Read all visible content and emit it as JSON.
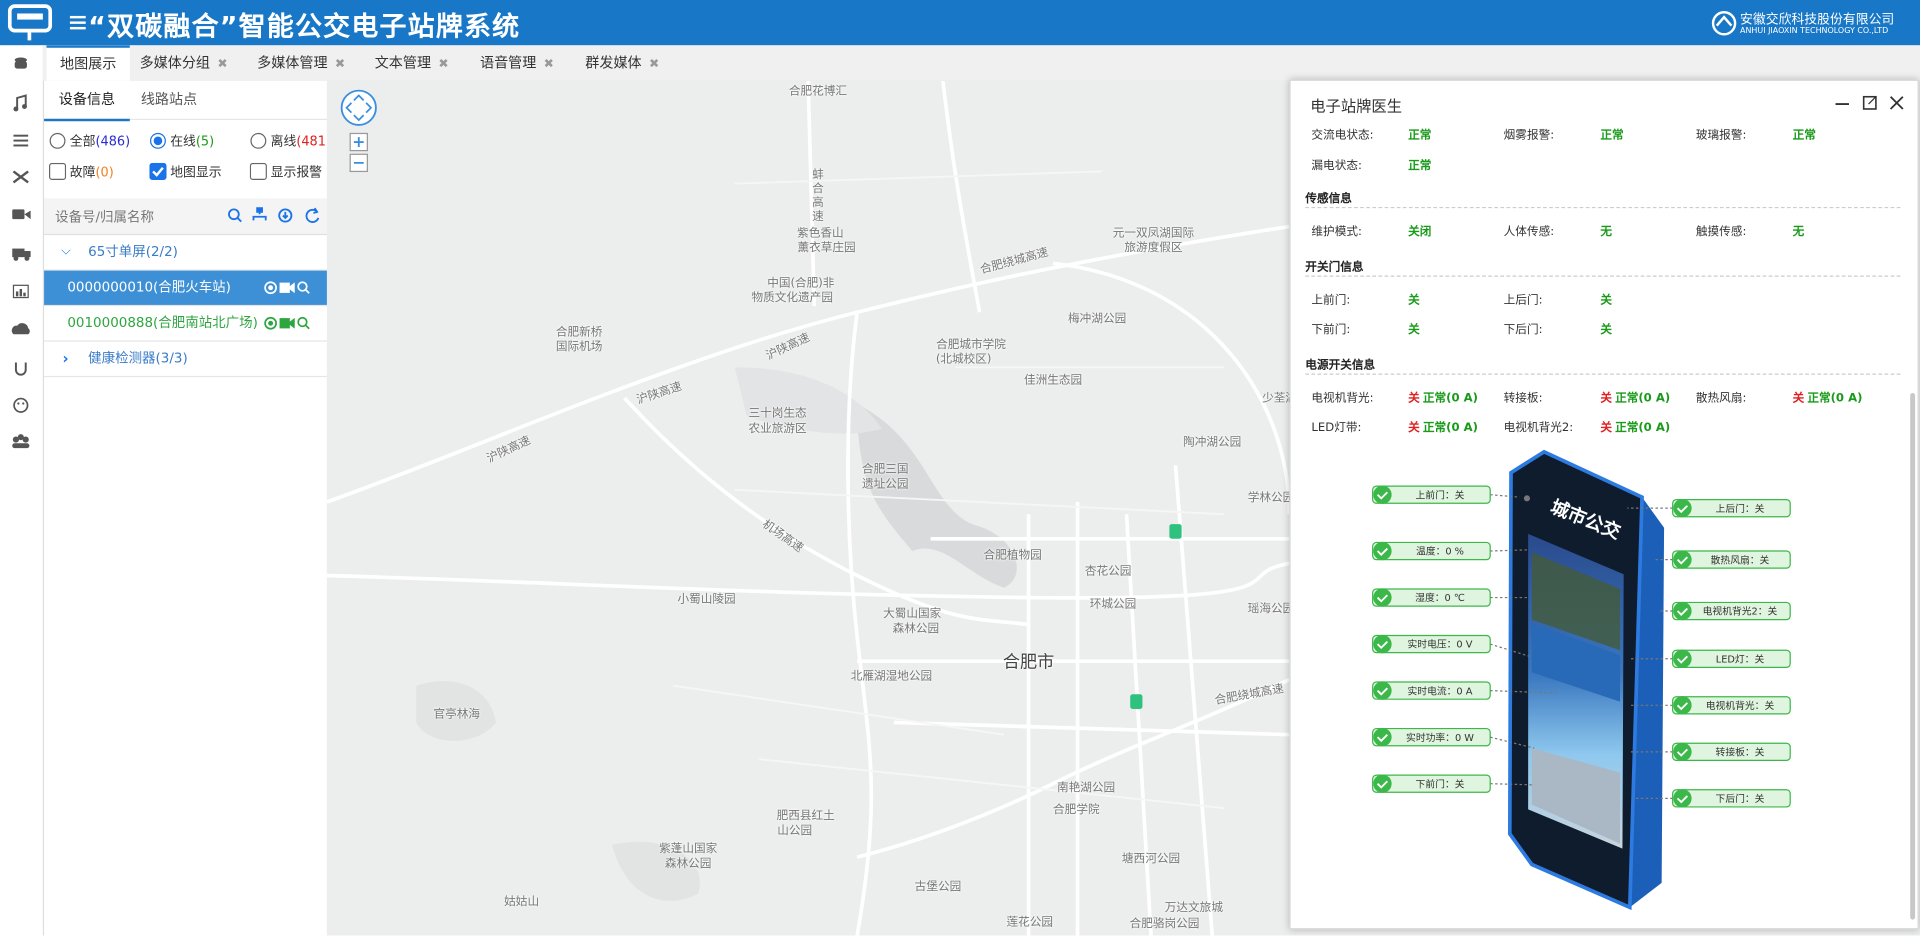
{
  "header": {
    "title": "“双碳融合”智能公交电子站牌系统",
    "company": "安徽交欣科技股份有限公司",
    "company_en": "ANHUI JIAOXIN TECHNOLOGY CO.,LTD"
  },
  "tabs": [
    "地图展示",
    "多媒体分组",
    "多媒体管理",
    "文本管理",
    "语音管理",
    "群发媒体"
  ],
  "panel": {
    "subtabs": [
      "设备信息",
      "线路站点"
    ],
    "filters": [
      {
        "label": "全部",
        "count": "(486)"
      },
      {
        "label": "在线",
        "count": "(5)"
      },
      {
        "label": "离线",
        "count": "(481)"
      },
      {
        "label": "故障",
        "count": "(0)"
      },
      {
        "label": "地图显示"
      },
      {
        "label": "显示报警"
      }
    ],
    "search_placeholder": "设备号/归属名称",
    "tree": [
      {
        "label": "65寸单屏(2/2)",
        "children": [
          "0000000010(合肥火车站)",
          "0010000888(合肥南站北广场)"
        ]
      },
      {
        "label": "健康检测器(3/3)"
      }
    ]
  },
  "map": {
    "labels": [
      "合肥花博汇",
      "蚌合高速",
      "紫色香山",
      "薰衣草庄园",
      "元一双凤湖国际",
      "旅游度假区",
      "合肥绕城高速",
      "中国(合肥)非",
      "物质文化遗产园",
      "梅冲湖公园",
      "合肥新桥",
      "国际机场",
      "合肥城市学院",
      "(北城校区)",
      "沪陕高速",
      "沪陕高速",
      "沪陕高速",
      "佳洲生态园",
      "三十岗生态",
      "农业旅游区",
      "少荃湖",
      "陶冲湖公园",
      "合肥三国",
      "遗址公园",
      "学林公园",
      "机场高速",
      "合肥植物园",
      "杏花公园",
      "小蜀山陵园",
      "环城公园",
      "大蜀山国家",
      "森林公园",
      "瑶海公园",
      "合肥市",
      "北雁湖湿地公园",
      "合肥绕城高速",
      "官亭林海",
      "南艳湖公园",
      "合肥学院",
      "肥西县红土",
      "山公园",
      "紫蓬山国家",
      "森林公园",
      "塘西河公园",
      "古堡公园",
      "姑姑山",
      "莲花公园",
      "合肥骆岗公园",
      "万达文旅城"
    ]
  },
  "doctor": {
    "title": "电子站牌医生",
    "groups": [
      {
        "rows": [
          [
            {
              "label": "交流电状态:",
              "value": "正常"
            },
            {
              "label": "烟雾报警:",
              "value": "正常"
            },
            {
              "label": "玻璃报警:",
              "value": "正常"
            }
          ],
          [
            {
              "label": "漏电状态:",
              "value": "正常"
            }
          ]
        ]
      },
      {
        "title": "传感信息",
        "rows": [
          [
            {
              "label": "维护模式:",
              "value": "关闭"
            },
            {
              "label": "人体传感:",
              "value": "无"
            },
            {
              "label": "触摸传感:",
              "value": "无"
            }
          ]
        ]
      },
      {
        "title": "开关门信息",
        "rows": [
          [
            {
              "label": "上前门:",
              "value": "关"
            },
            {
              "label": "上后门:",
              "value": "关"
            }
          ],
          [
            {
              "label": "下前门:",
              "value": "关"
            },
            {
              "label": "下后门:",
              "value": "关"
            }
          ]
        ]
      },
      {
        "title": "电源开关信息",
        "rows": [
          [
            {
              "label": "电视机背光:",
              "value": "关",
              "state": "正常(0 A)"
            },
            {
              "label": "转接板:",
              "value": "关",
              "state": "正常(0 A)"
            },
            {
              "label": "散热风扇:",
              "value": "关",
              "state": "正常(0 A)"
            }
          ],
          [
            {
              "label": "LED灯带:",
              "value": "关",
              "state": "正常(0 A)"
            },
            {
              "label": "电视机背光2:",
              "value": "关",
              "state": "正常(0 A)"
            }
          ]
        ]
      }
    ],
    "kiosk_brand": "城市公交",
    "callouts_left": [
      "上前门：关",
      "温度：0 %",
      "湿度：0 ℃",
      "实时电压：0 V",
      "实时电流：0 A",
      "实时功率：0 W",
      "下前门：关"
    ],
    "callouts_right": [
      "上后门：关",
      "散热风扇：关",
      "电视机背光2：关",
      "LED灯：关",
      "电视机背光：关",
      "转接板：关",
      "下后门：关"
    ]
  }
}
